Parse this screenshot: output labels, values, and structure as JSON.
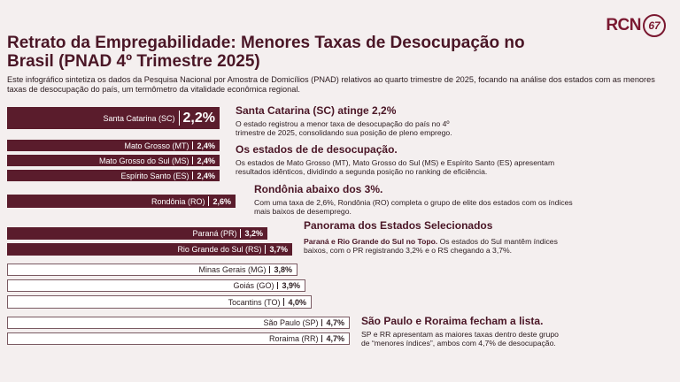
{
  "header": {
    "logo": {
      "text": "RCN",
      "badge": "67"
    },
    "title": "Retrato da Empregabilidade: Menores Taxas de Desocupação no Brasil (PNAD 4º Trimestre 2025)",
    "intro": "Este infográfico sintetiza os dados da Pesquisa Nacional por Amostra de Domicílios (PNAD) relativos ao quarto trimestre de 2025, focando na análise dos estados com as menores taxas de desocupação do país, um termômetro da vitalidade econômica regional."
  },
  "rows": [
    {
      "label": "Santa Catarina (SC)",
      "value": "2,2%"
    },
    {
      "label": "Mato Grosso (MT)",
      "value": "2,4%"
    },
    {
      "label": "Mato Grosso do Sul (MS)",
      "value": "2,4%"
    },
    {
      "label": "Espírito Santo (ES)",
      "value": "2,4%"
    },
    {
      "label": "Rondônia (RO)",
      "value": "2,6%"
    },
    {
      "label": "Paraná (PR)",
      "value": "3,2%"
    },
    {
      "label": "Rio Grande do Sul (RS)",
      "value": "3,7%"
    },
    {
      "label": "Minas Gerais (MG)",
      "value": "3,8%"
    },
    {
      "label": "Goiás (GO)",
      "value": "3,9%"
    },
    {
      "label": "Tocantins (TO)",
      "value": "4,0%"
    },
    {
      "label": "São Paulo (SP)",
      "value": "4,7%"
    },
    {
      "label": "Roraima (RR)",
      "value": "4,7%"
    }
  ],
  "notes": [
    {
      "heading": "Santa Catarina (SC) atinge 2,2%",
      "body": "O estado registrou a menor taxa de desocupação do país no 4º trimestre de 2025, consolidando sua posição de pleno emprego."
    },
    {
      "heading": "Os estados de de desocupação.",
      "body": "Os estados de Mato Grosso (MT), Mato Grosso do Sul (MS) e Espírito Santo (ES) apresentam resultados idênticos, dividindo a segunda posição no ranking de eficiência."
    },
    {
      "heading": "Rondônia abaixo dos 3%.",
      "body": "Com uma taxa de 2,6%, Rondônia (RO) completa o grupo de elite dos estados com os índices mais baixos de desemprego."
    },
    {
      "heading": "Panorama dos Estados Selecionados",
      "lead": "Paraná e Rio Grande do Sul no Topo.",
      "body": "Os estados do Sul mantêm índices baixos, com o PR registrando 3,2% e o RS chegando a 3,7%."
    },
    {
      "heading": "São Paulo e Roraima fecham a lista.",
      "body": "SP e RR apresentam as maiores taxas dentro deste grupo de “menores índices”, ambos com 4,7% de desocupação."
    }
  ]
}
